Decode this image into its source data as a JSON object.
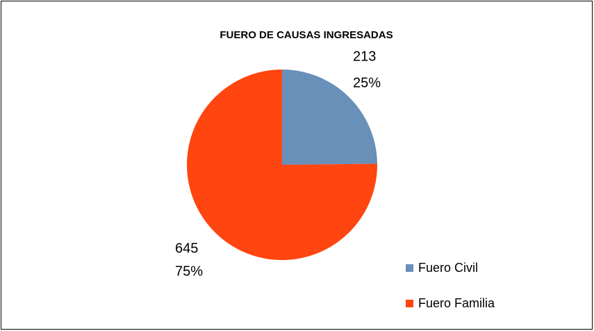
{
  "chart_data": {
    "type": "pie",
    "title": "FUERO DE CAUSAS INGRESADAS",
    "categories": [
      "Fuero Civil",
      "Fuero Familia"
    ],
    "values": [
      213,
      645
    ],
    "percent_labels": [
      "25%",
      "75%"
    ],
    "colors": [
      "#6890b8",
      "#ff4510"
    ],
    "legend": "right"
  }
}
